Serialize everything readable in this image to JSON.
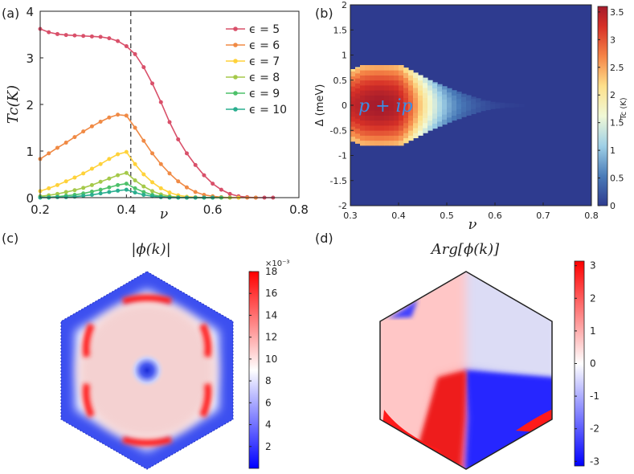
{
  "panels": {
    "a": {
      "label": "(a)"
    },
    "b": {
      "label": "(b)"
    },
    "c": {
      "label": "(c)",
      "title": "|ϕ(k)|"
    },
    "d": {
      "label": "(d)",
      "title": "Arg[ϕ(k)]"
    }
  },
  "chart_data": [
    {
      "panel": "a",
      "type": "line",
      "xlabel": "ν",
      "ylabel": "Tc(K)",
      "xlim": [
        0.2,
        0.8
      ],
      "ylim": [
        0,
        4
      ],
      "xticks": [
        0.2,
        0.4,
        0.6,
        0.8
      ],
      "xtick_labels": [
        "0.2",
        "0.4",
        "0.6",
        "0.8"
      ],
      "yticks": [
        0,
        1,
        2,
        3,
        4
      ],
      "ytick_labels": [
        "0",
        "1",
        "2",
        "3",
        "4"
      ],
      "vline_x": 0.41,
      "legend_position": "top-right",
      "series": [
        {
          "name": "ϵ = 5",
          "color": "#d9506a",
          "x": [
            0.2,
            0.22,
            0.24,
            0.26,
            0.28,
            0.3,
            0.32,
            0.34,
            0.36,
            0.38,
            0.4,
            0.42,
            0.44,
            0.46,
            0.48,
            0.5,
            0.52,
            0.54,
            0.56,
            0.58,
            0.6,
            0.62,
            0.64,
            0.66,
            0.68,
            0.7,
            0.72,
            0.74
          ],
          "y": [
            3.62,
            3.55,
            3.51,
            3.49,
            3.48,
            3.47,
            3.46,
            3.45,
            3.42,
            3.36,
            3.25,
            3.08,
            2.8,
            2.45,
            2.05,
            1.62,
            1.25,
            0.95,
            0.7,
            0.48,
            0.3,
            0.17,
            0.08,
            0.03,
            0.01,
            0,
            0,
            0
          ]
        },
        {
          "name": "ϵ = 6",
          "color": "#f08a45",
          "x": [
            0.2,
            0.22,
            0.24,
            0.26,
            0.28,
            0.3,
            0.32,
            0.34,
            0.36,
            0.38,
            0.4,
            0.42,
            0.44,
            0.46,
            0.48,
            0.5,
            0.52,
            0.54,
            0.56,
            0.58,
            0.6,
            0.62,
            0.64,
            0.66,
            0.68,
            0.7
          ],
          "y": [
            0.83,
            0.95,
            1.07,
            1.18,
            1.3,
            1.42,
            1.53,
            1.63,
            1.72,
            1.78,
            1.76,
            1.5,
            1.22,
            0.95,
            0.72,
            0.52,
            0.35,
            0.22,
            0.12,
            0.06,
            0.03,
            0.01,
            0,
            0,
            0,
            0
          ]
        },
        {
          "name": "ϵ = 7",
          "color": "#ffd23a",
          "x": [
            0.2,
            0.22,
            0.24,
            0.26,
            0.28,
            0.3,
            0.32,
            0.34,
            0.36,
            0.38,
            0.4,
            0.42,
            0.44,
            0.46,
            0.48,
            0.5,
            0.52,
            0.54,
            0.56,
            0.58,
            0.6,
            0.62,
            0.64,
            0.66
          ],
          "y": [
            0.14,
            0.2,
            0.27,
            0.35,
            0.43,
            0.52,
            0.62,
            0.72,
            0.83,
            0.93,
            0.98,
            0.72,
            0.5,
            0.33,
            0.2,
            0.11,
            0.05,
            0.02,
            0.01,
            0,
            0,
            0,
            0,
            0
          ]
        },
        {
          "name": "ϵ = 8",
          "color": "#a5c94a",
          "x": [
            0.2,
            0.22,
            0.24,
            0.26,
            0.28,
            0.3,
            0.32,
            0.34,
            0.36,
            0.38,
            0.4,
            0.42,
            0.44,
            0.46,
            0.48,
            0.5,
            0.52,
            0.54,
            0.56,
            0.58,
            0.6,
            0.62,
            0.64
          ],
          "y": [
            0.03,
            0.05,
            0.08,
            0.12,
            0.16,
            0.21,
            0.27,
            0.34,
            0.41,
            0.48,
            0.53,
            0.37,
            0.24,
            0.14,
            0.07,
            0.03,
            0.01,
            0,
            0,
            0,
            0,
            0,
            0
          ]
        },
        {
          "name": "ϵ = 9",
          "color": "#4dc16a",
          "x": [
            0.2,
            0.22,
            0.24,
            0.26,
            0.28,
            0.3,
            0.32,
            0.34,
            0.36,
            0.38,
            0.4,
            0.42,
            0.44,
            0.46,
            0.48,
            0.5,
            0.52,
            0.54,
            0.56,
            0.58,
            0.6,
            0.62
          ],
          "y": [
            0.01,
            0.01,
            0.02,
            0.04,
            0.06,
            0.09,
            0.13,
            0.17,
            0.22,
            0.27,
            0.3,
            0.2,
            0.12,
            0.06,
            0.03,
            0.01,
            0,
            0,
            0,
            0,
            0,
            0
          ]
        },
        {
          "name": "ϵ = 10",
          "color": "#2aae8f",
          "x": [
            0.2,
            0.22,
            0.24,
            0.26,
            0.28,
            0.3,
            0.32,
            0.34,
            0.36,
            0.38,
            0.4,
            0.42,
            0.44,
            0.46,
            0.48,
            0.5,
            0.52,
            0.54,
            0.56,
            0.58,
            0.6
          ],
          "y": [
            0,
            0,
            0.01,
            0.01,
            0.02,
            0.04,
            0.06,
            0.09,
            0.12,
            0.15,
            0.17,
            0.11,
            0.06,
            0.03,
            0.01,
            0,
            0,
            0,
            0,
            0,
            0
          ]
        }
      ]
    },
    {
      "panel": "b",
      "type": "heatmap",
      "xlabel": "ν",
      "ylabel": "Δ (meV)",
      "xlim": [
        0.3,
        0.8
      ],
      "ylim": [
        -2,
        2
      ],
      "xticks": [
        0.3,
        0.4,
        0.5,
        0.6,
        0.7,
        0.8
      ],
      "xtick_labels": [
        "0.3",
        "0.4",
        "0.5",
        "0.6",
        "0.7",
        "0.8"
      ],
      "yticks": [
        -2,
        -1.5,
        -1,
        -0.5,
        0,
        0.5,
        1,
        1.5,
        2
      ],
      "ytick_labels": [
        "-2",
        "-1.5",
        "-1",
        "-0.5",
        "0",
        "0.5",
        "1",
        "1.5",
        "2"
      ],
      "annotation": "p + ip",
      "colorbar": {
        "label": "Tc (K)",
        "min": 0,
        "max": 3.6,
        "ticks": [
          0,
          0.5,
          1,
          1.5,
          2,
          2.5,
          3,
          3.5
        ],
        "tick_labels": [
          "0",
          "0.5",
          "1",
          "1.5",
          "2",
          "2.5",
          "3",
          "3.5"
        ]
      },
      "background_color": "#2e3b8f",
      "columns_nu": [
        0.31,
        0.32,
        0.33,
        0.34,
        0.35,
        0.36,
        0.37,
        0.38,
        0.39,
        0.4,
        0.41,
        0.42,
        0.43,
        0.44,
        0.45,
        0.46,
        0.47,
        0.48,
        0.49,
        0.5,
        0.51,
        0.52,
        0.53,
        0.54,
        0.55,
        0.56,
        0.57,
        0.58,
        0.59,
        0.6,
        0.61,
        0.62,
        0.63,
        0.64,
        0.65,
        0.66
      ],
      "columns_delta_half_width": [
        0.72,
        0.76,
        0.8,
        0.8,
        0.8,
        0.8,
        0.8,
        0.8,
        0.8,
        0.8,
        0.8,
        0.75,
        0.7,
        0.65,
        0.6,
        0.55,
        0.5,
        0.46,
        0.42,
        0.38,
        0.34,
        0.3,
        0.27,
        0.23,
        0.2,
        0.17,
        0.14,
        0.11,
        0.09,
        0.07,
        0.06,
        0.05,
        0.04,
        0.04,
        0.03,
        0.03
      ],
      "columns_peak_tc": [
        3.4,
        3.45,
        3.5,
        3.55,
        3.58,
        3.6,
        3.6,
        3.58,
        3.55,
        3.5,
        3.35,
        3.15,
        2.9,
        2.6,
        2.3,
        2.0,
        1.7,
        1.45,
        1.2,
        1.0,
        0.82,
        0.68,
        0.56,
        0.46,
        0.38,
        0.31,
        0.25,
        0.2,
        0.16,
        0.12,
        0.09,
        0.07,
        0.05,
        0.04,
        0.03,
        0.02
      ]
    },
    {
      "panel": "c",
      "type": "heatmap",
      "title": "|ϕ(k)|",
      "colorbar": {
        "exponent_label": "×10⁻³",
        "min": 0,
        "max": 18,
        "ticks": [
          2,
          4,
          6,
          8,
          10,
          12,
          14,
          16,
          18
        ],
        "tick_labels": [
          "2",
          "4",
          "6",
          "8",
          "10",
          "12",
          "14",
          "16",
          "18"
        ]
      }
    },
    {
      "panel": "d",
      "type": "heatmap",
      "title": "Arg[ϕ(k)]",
      "colorbar": {
        "min": -3.14,
        "max": 3.14,
        "ticks": [
          -3,
          -2,
          -1,
          0,
          1,
          2,
          3
        ],
        "tick_labels": [
          "-3",
          "-2",
          "-1",
          "0",
          "1",
          "2",
          "3"
        ]
      }
    }
  ]
}
